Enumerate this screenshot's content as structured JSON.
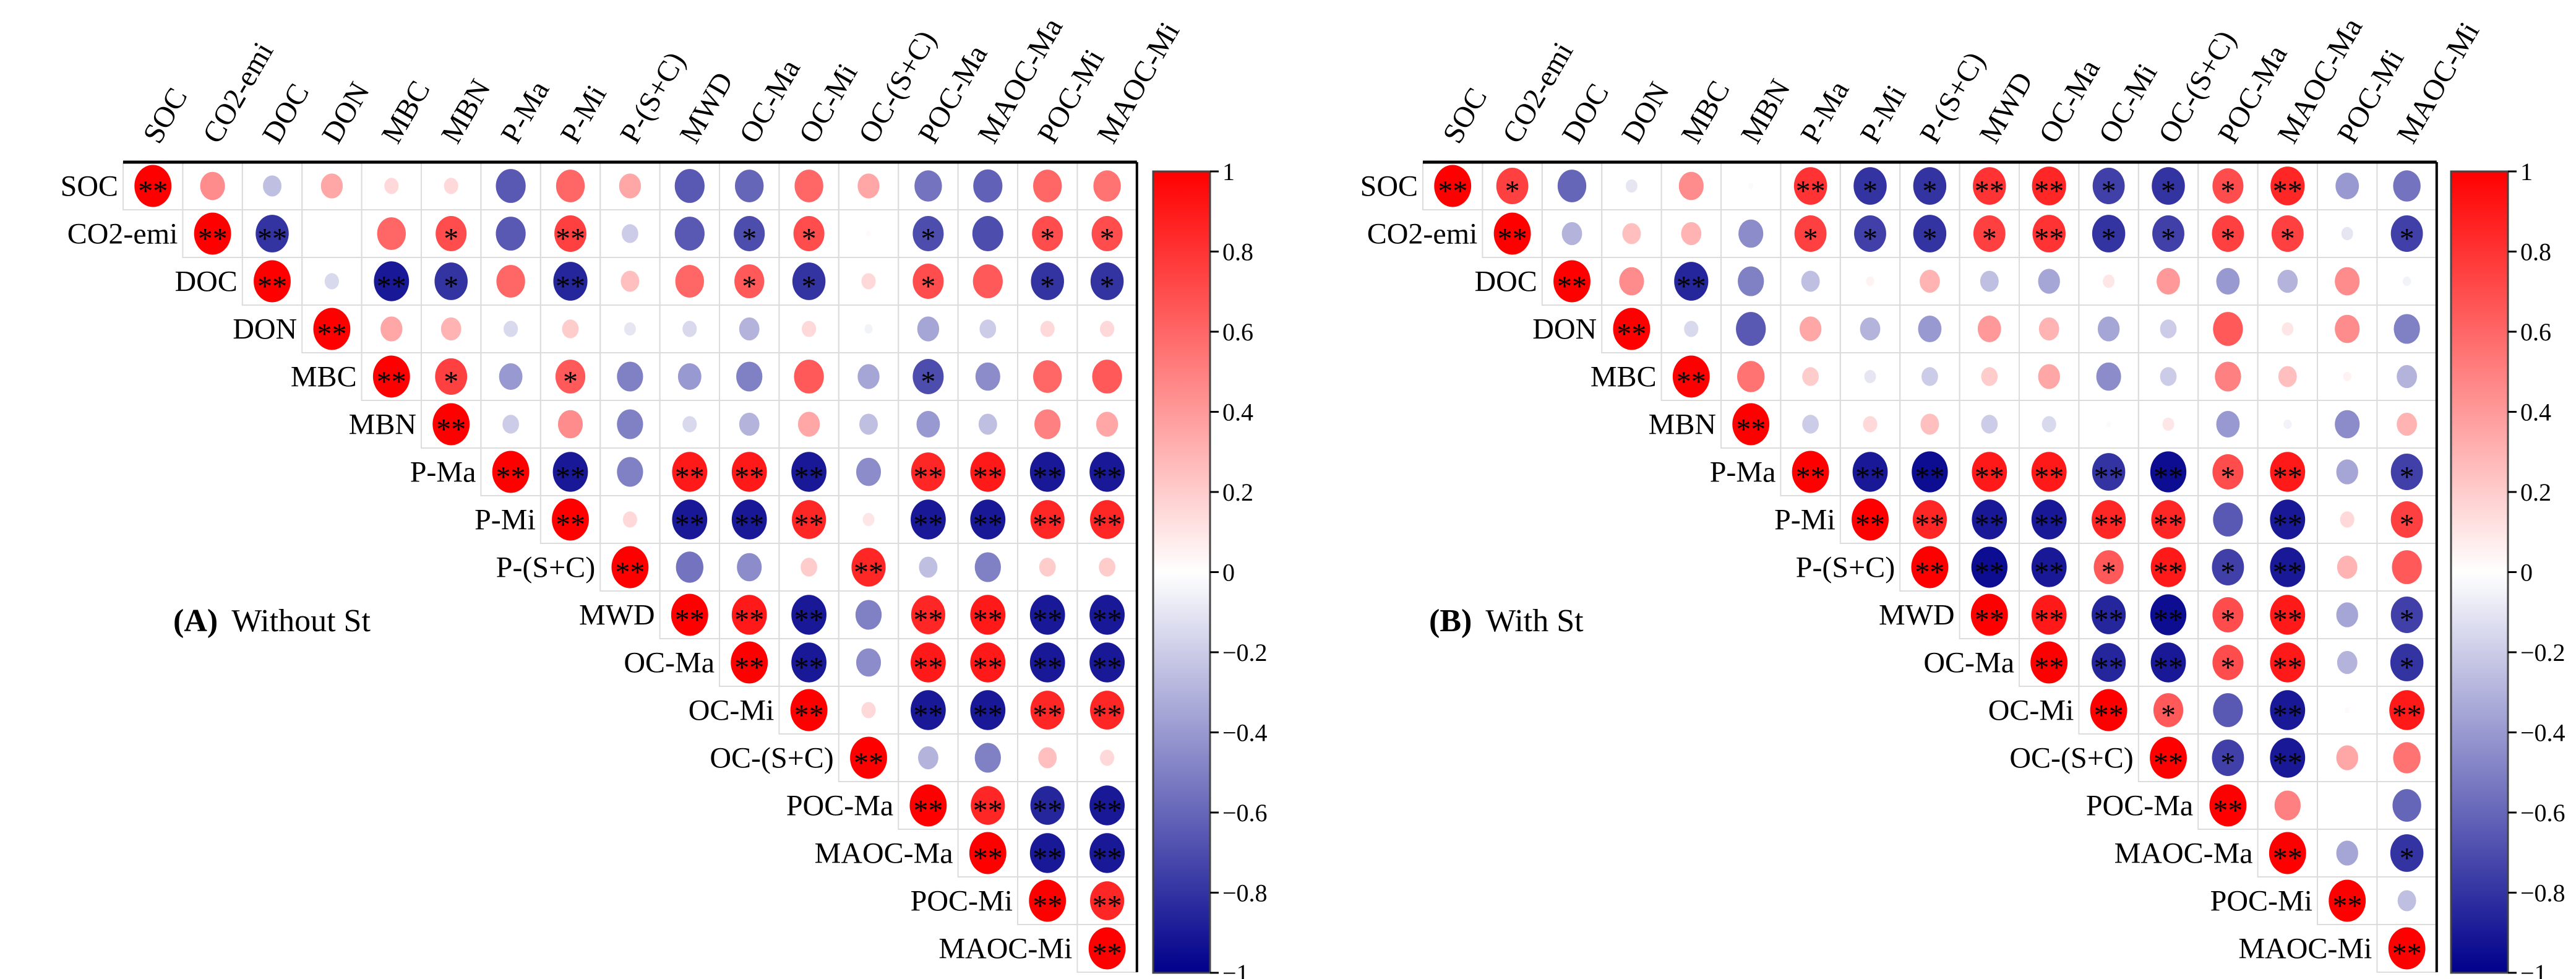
{
  "chart_data": [
    {
      "type": "heatmap",
      "subtype": "correlation-matrix-upper-circles",
      "panel_label": "(A)",
      "title": "Without St",
      "variables": [
        "SOC",
        "CO2-emi",
        "DOC",
        "DON",
        "MBC",
        "MBN",
        "P-Ma",
        "P-Mi",
        "P-(S+C)",
        "MWD",
        "OC-Ma",
        "OC-Mi",
        "OC-(S+C)",
        "POC-Ma",
        "MAOC-Ma",
        "POC-Mi",
        "MAOC-Mi"
      ],
      "values_upper_from_diagonal": [
        [
          1,
          0.45,
          -0.25,
          0.35,
          0.15,
          0.15,
          -0.65,
          0.6,
          0.35,
          -0.65,
          -0.6,
          0.6,
          0.35,
          -0.55,
          -0.62,
          0.6,
          0.55
        ],
        [
          1,
          -0.8,
          0.0,
          0.6,
          0.7,
          -0.65,
          0.75,
          -0.2,
          -0.65,
          -0.7,
          0.7,
          0.02,
          -0.7,
          -0.7,
          0.7,
          0.7
        ],
        [
          1,
          -0.15,
          -0.9,
          -0.8,
          0.6,
          -0.85,
          0.25,
          0.6,
          0.65,
          -0.8,
          0.15,
          0.7,
          0.65,
          -0.8,
          -0.8
        ],
        [
          1,
          0.35,
          0.3,
          -0.15,
          0.2,
          -0.1,
          -0.15,
          -0.3,
          0.15,
          -0.05,
          -0.35,
          -0.2,
          0.15,
          0.15
        ],
        [
          1,
          0.75,
          -0.4,
          0.65,
          -0.5,
          -0.4,
          -0.5,
          0.65,
          -0.35,
          -0.7,
          -0.45,
          0.6,
          0.65
        ],
        [
          1,
          -0.2,
          0.45,
          -0.5,
          -0.15,
          -0.3,
          0.35,
          -0.25,
          -0.4,
          -0.25,
          0.5,
          0.35
        ],
        [
          1,
          -0.9,
          -0.5,
          0.9,
          0.9,
          -0.9,
          -0.45,
          0.85,
          0.9,
          -0.9,
          -0.9
        ],
        [
          1,
          0.15,
          -0.9,
          -0.9,
          0.85,
          0.1,
          -0.9,
          -0.9,
          0.85,
          0.85
        ],
        [
          1,
          -0.55,
          -0.45,
          0.2,
          0.85,
          -0.25,
          -0.5,
          0.2,
          0.2
        ],
        [
          1,
          0.9,
          -0.9,
          -0.5,
          0.85,
          0.9,
          -0.9,
          -0.9
        ],
        [
          1,
          -0.9,
          -0.45,
          0.9,
          0.9,
          -0.9,
          -0.9
        ],
        [
          1,
          0.15,
          -0.9,
          -0.9,
          0.85,
          0.85
        ],
        [
          1,
          -0.3,
          -0.5,
          0.25,
          0.15
        ],
        [
          1,
          0.85,
          -0.85,
          -0.9
        ],
        [
          1,
          -0.9,
          -0.9
        ],
        [
          1,
          0.85
        ],
        [
          1
        ]
      ],
      "significance_upper_from_diagonal": [
        [
          "**",
          "",
          "",
          "",
          "",
          "",
          "",
          "",
          "",
          "",
          "",
          "",
          "",
          "",
          "",
          "",
          ""
        ],
        [
          "**",
          "**",
          "",
          "",
          "*",
          "",
          "**",
          "",
          "",
          "*",
          "*",
          "",
          "*",
          "",
          "*",
          "*"
        ],
        [
          "**",
          "",
          "**",
          "*",
          "",
          "**",
          "",
          "",
          "*",
          "*",
          "",
          "*",
          "",
          "*",
          "*"
        ],
        [
          "**",
          "",
          "",
          "",
          "",
          "",
          "",
          "",
          "",
          "",
          "",
          "",
          "",
          " "
        ],
        [
          "**",
          "*",
          "",
          "*",
          "",
          "",
          "",
          "",
          "",
          "*",
          "",
          "",
          ""
        ],
        [
          "**",
          "",
          "",
          "",
          "",
          "",
          "",
          "",
          "",
          "",
          "",
          ""
        ],
        [
          "**",
          "**",
          "",
          "**",
          "**",
          "**",
          "",
          "**",
          "**",
          "**",
          "**"
        ],
        [
          "**",
          "",
          "**",
          "**",
          "**",
          "",
          "**",
          "**",
          "**",
          "**"
        ],
        [
          "**",
          "",
          "",
          "",
          "**",
          "",
          "",
          "",
          ""
        ],
        [
          "**",
          "**",
          "**",
          "",
          "**",
          "**",
          "**",
          "**"
        ],
        [
          "**",
          "**",
          "",
          "**",
          "**",
          "**",
          "**"
        ],
        [
          "**",
          "",
          "**",
          "**",
          "**",
          "**"
        ],
        [
          "**",
          "",
          "",
          "",
          ""
        ],
        [
          "**",
          "**",
          "**",
          "**"
        ],
        [
          "**",
          "**",
          "**"
        ],
        [
          "**",
          "**"
        ],
        [
          "**"
        ]
      ],
      "colorbar": {
        "min": -1,
        "max": 1,
        "ticks": [
          "1",
          "0.8",
          "0.6",
          "0.4",
          "0.2",
          "0",
          "−0.2",
          "−0.4",
          "−0.6",
          "−0.8",
          "−1"
        ],
        "tick_values": [
          1,
          0.8,
          0.6,
          0.4,
          0.2,
          0,
          -0.2,
          -0.4,
          -0.6,
          -0.8,
          -1
        ]
      },
      "colors": {
        "positive": "#FF0000",
        "zero": "#FFFFFF",
        "negative": "#00008B"
      }
    },
    {
      "type": "heatmap",
      "subtype": "correlation-matrix-upper-circles",
      "panel_label": "(B)",
      "title": "With St",
      "variables": [
        "SOC",
        "CO2-emi",
        "DOC",
        "DON",
        "MBC",
        "MBN",
        "P-Ma",
        "P-Mi",
        "P-(S+C)",
        "MWD",
        "OC-Ma",
        "OC-Mi",
        "OC-(S+C)",
        "POC-Ma",
        "MAOC-Ma",
        "POC-Mi",
        "MAOC-Mi"
      ],
      "values_upper_from_diagonal": [
        [
          1,
          0.75,
          -0.6,
          -0.1,
          0.45,
          0.02,
          0.8,
          -0.8,
          -0.8,
          0.8,
          0.85,
          -0.75,
          -0.8,
          0.7,
          0.85,
          -0.4,
          -0.55
        ],
        [
          1,
          -0.3,
          0.25,
          0.3,
          -0.45,
          0.75,
          -0.75,
          -0.8,
          0.75,
          0.8,
          -0.8,
          -0.75,
          0.75,
          0.75,
          -0.1,
          -0.75
        ],
        [
          1,
          0.45,
          -0.85,
          -0.5,
          -0.25,
          0.05,
          0.3,
          -0.25,
          -0.35,
          0.1,
          0.4,
          -0.4,
          -0.3,
          0.45,
          -0.05
        ],
        [
          1,
          -0.15,
          -0.65,
          0.35,
          -0.3,
          -0.4,
          0.4,
          0.3,
          -0.35,
          -0.2,
          0.65,
          0.1,
          0.45,
          -0.5
        ],
        [
          1,
          0.55,
          0.2,
          -0.1,
          -0.2,
          0.2,
          0.35,
          -0.45,
          -0.2,
          0.5,
          0.25,
          0.05,
          -0.3
        ],
        [
          1,
          -0.2,
          0.15,
          0.25,
          -0.2,
          -0.15,
          0.02,
          0.1,
          -0.4,
          -0.05,
          -0.45,
          0.3
        ],
        [
          1,
          -0.9,
          -0.95,
          0.9,
          0.9,
          -0.8,
          -0.95,
          0.7,
          0.9,
          -0.35,
          -0.75
        ],
        [
          1,
          0.85,
          -0.9,
          -0.9,
          0.85,
          0.85,
          -0.65,
          -0.9,
          0.15,
          0.75
        ],
        [
          1,
          -0.95,
          -0.9,
          0.65,
          0.9,
          -0.75,
          -0.9,
          0.3,
          0.65
        ],
        [
          1,
          0.9,
          -0.85,
          -0.95,
          0.7,
          0.9,
          -0.35,
          -0.75
        ],
        [
          1,
          -0.85,
          -0.9,
          0.7,
          0.9,
          -0.3,
          -0.8
        ],
        [
          1,
          0.65,
          -0.65,
          -0.9,
          0.02,
          0.9
        ],
        [
          1,
          -0.75,
          -0.9,
          0.35,
          0.55
        ],
        [
          1,
          0.5,
          0.0,
          -0.6
        ],
        [
          1,
          -0.35,
          -0.8
        ],
        [
          1,
          -0.25
        ],
        [
          1
        ]
      ],
      "significance_upper_from_diagonal": [
        [
          "**",
          "*",
          "",
          "",
          "",
          "",
          "**",
          "*",
          "*",
          "**",
          "**",
          "*",
          "*",
          "*",
          "**",
          "",
          ""
        ],
        [
          "**",
          "",
          "",
          "",
          "",
          "*",
          "*",
          "*",
          "*",
          "**",
          "*",
          "*",
          "*",
          "*",
          "",
          "*"
        ],
        [
          "**",
          "",
          "**",
          "",
          "",
          "",
          "",
          "",
          "",
          "",
          "",
          "",
          "",
          "",
          ""
        ],
        [
          "**",
          "",
          "",
          "",
          "",
          "",
          "",
          "",
          "",
          "",
          "",
          "",
          "",
          ""
        ],
        [
          "**",
          "",
          "",
          "",
          "",
          "",
          "",
          "",
          "",
          "",
          "",
          "",
          ""
        ],
        [
          "**",
          "",
          "",
          "",
          "",
          "",
          "",
          "",
          "",
          "",
          "",
          ""
        ],
        [
          "**",
          "**",
          "**",
          "**",
          "**",
          "**",
          "**",
          "*",
          "**",
          "",
          "*"
        ],
        [
          "**",
          "**",
          "**",
          "**",
          "**",
          "**",
          "",
          "**",
          "",
          "*"
        ],
        [
          "**",
          "**",
          "**",
          "*",
          "**",
          "*",
          "**",
          "",
          ""
        ],
        [
          "**",
          "**",
          "**",
          "**",
          "*",
          "**",
          "",
          "*"
        ],
        [
          "**",
          "**",
          "**",
          "*",
          "**",
          "",
          "*"
        ],
        [
          "**",
          "*",
          "",
          "**",
          "",
          "**"
        ],
        [
          "**",
          "*",
          "**",
          "",
          ""
        ],
        [
          "**",
          "",
          "",
          ""
        ],
        [
          "**",
          "",
          "*"
        ],
        [
          "**",
          ""
        ],
        [
          "**"
        ]
      ],
      "colorbar": {
        "min": -1,
        "max": 1,
        "ticks": [
          "1",
          "0.8",
          "0.6",
          "0.4",
          "0.2",
          "0",
          "−0.2",
          "−0.4",
          "−0.6",
          "−0.8",
          "−1"
        ],
        "tick_values": [
          1,
          0.8,
          0.6,
          0.4,
          0.2,
          0,
          -0.2,
          -0.4,
          -0.6,
          -0.8,
          -1
        ]
      },
      "colors": {
        "positive": "#FF0000",
        "zero": "#FFFFFF",
        "negative": "#00008B"
      }
    }
  ]
}
